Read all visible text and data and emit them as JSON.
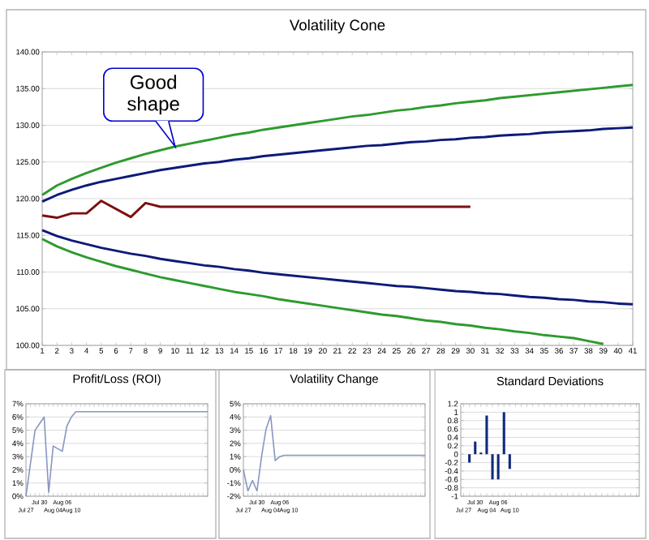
{
  "chart_data": [
    {
      "type": "line",
      "title": "Volatility Cone",
      "categories": [
        "1",
        "2",
        "3",
        "4",
        "5",
        "6",
        "7",
        "8",
        "9",
        "10",
        "11",
        "12",
        "13",
        "14",
        "15",
        "16",
        "17",
        "18",
        "19",
        "20",
        "21",
        "22",
        "23",
        "24",
        "25",
        "26",
        "27",
        "28",
        "29",
        "30",
        "31",
        "32",
        "33",
        "34",
        "35",
        "36",
        "37",
        "38",
        "39",
        "40",
        "41"
      ],
      "series": [
        {
          "color": "#2e9a2e",
          "values": [
            120.5,
            121.8,
            122.7,
            123.5,
            124.2,
            124.9,
            125.5,
            126.1,
            126.6,
            127.1,
            127.5,
            127.9,
            128.3,
            128.7,
            129.0,
            129.4,
            129.7,
            130.0,
            130.3,
            130.6,
            130.9,
            131.2,
            131.4,
            131.7,
            132.0,
            132.2,
            132.5,
            132.7,
            133.0,
            133.2,
            133.4,
            133.7,
            133.9,
            134.1,
            134.3,
            134.5,
            134.7,
            134.9,
            135.1,
            135.3,
            135.5
          ]
        },
        {
          "color": "#0c1a78",
          "values": [
            119.6,
            120.5,
            121.2,
            121.8,
            122.3,
            122.7,
            123.1,
            123.5,
            123.9,
            124.2,
            124.5,
            124.8,
            125.0,
            125.3,
            125.5,
            125.8,
            126.0,
            126.2,
            126.4,
            126.6,
            126.8,
            127.0,
            127.2,
            127.3,
            127.5,
            127.7,
            127.8,
            128.0,
            128.1,
            128.3,
            128.4,
            128.6,
            128.7,
            128.8,
            129.0,
            129.1,
            129.2,
            129.3,
            129.5,
            129.6,
            129.7
          ]
        },
        {
          "color": "#7b1010",
          "values": [
            117.7,
            117.4,
            118.0,
            118.0,
            119.7,
            118.6,
            117.5,
            119.4,
            118.9,
            118.9,
            118.9,
            118.9,
            118.9,
            118.9,
            118.9,
            118.9,
            118.9,
            118.9,
            118.9,
            118.9,
            118.9,
            118.9,
            118.9,
            118.9,
            118.9,
            118.9,
            118.9,
            118.9,
            118.9,
            118.9,
            null,
            null,
            null,
            null,
            null,
            null,
            null,
            null,
            null,
            null,
            null
          ]
        },
        {
          "color": "#0c1a78",
          "values": [
            115.7,
            114.9,
            114.3,
            113.8,
            113.3,
            112.9,
            112.5,
            112.2,
            111.8,
            111.5,
            111.2,
            110.9,
            110.7,
            110.4,
            110.2,
            109.9,
            109.7,
            109.5,
            109.3,
            109.1,
            108.9,
            108.7,
            108.5,
            108.3,
            108.1,
            108.0,
            107.8,
            107.6,
            107.4,
            107.3,
            107.1,
            107.0,
            106.8,
            106.6,
            106.5,
            106.3,
            106.2,
            106.0,
            105.9,
            105.7,
            105.6
          ]
        },
        {
          "color": "#2e9a2e",
          "values": [
            114.5,
            113.5,
            112.7,
            112.0,
            111.4,
            110.8,
            110.3,
            109.8,
            109.3,
            108.9,
            108.5,
            108.1,
            107.7,
            107.3,
            107.0,
            106.7,
            106.3,
            106.0,
            105.7,
            105.4,
            105.1,
            104.8,
            104.5,
            104.2,
            104.0,
            103.7,
            103.4,
            103.2,
            102.9,
            102.7,
            102.4,
            102.2,
            101.9,
            101.7,
            101.4,
            101.2,
            101.0,
            100.6,
            100.2,
            null,
            null
          ]
        }
      ],
      "ylim": [
        100,
        140
      ],
      "yticks": [
        {
          "value": 100,
          "label": "100.00"
        },
        {
          "value": 105,
          "label": "105.00"
        },
        {
          "value": 110,
          "label": "110.00"
        },
        {
          "value": 115,
          "label": "115.00"
        },
        {
          "value": 120,
          "label": "120.00"
        },
        {
          "value": 125,
          "label": "125.00"
        },
        {
          "value": 130,
          "label": "130.00"
        },
        {
          "value": 135,
          "label": "135.00"
        },
        {
          "value": 140,
          "label": "140.00"
        }
      ],
      "grid": "y",
      "annotations": [
        {
          "text": "Good shape",
          "x": "10",
          "y": 127.1
        }
      ]
    },
    {
      "type": "line",
      "title": "Profit/Loss (ROI)",
      "categories": [
        "Jul 27",
        null,
        null,
        "Jul 30",
        null,
        null,
        "Aug 04",
        null,
        "Aug 06",
        null,
        "Aug 10",
        null,
        null,
        null,
        null,
        null,
        null,
        null,
        null,
        null,
        null,
        null,
        null,
        null,
        null,
        null,
        null,
        null,
        null,
        null,
        null,
        null,
        null,
        null,
        null,
        null,
        null,
        null,
        null,
        null,
        null
      ],
      "series": [
        {
          "color": "#8896c0",
          "values": [
            0,
            2.5,
            5,
            5.5,
            6,
            0.3,
            3.8,
            3.6,
            3.4,
            5.3,
            6.0,
            6.4,
            6.4,
            6.4,
            6.4,
            6.4,
            6.4,
            6.4,
            6.4,
            6.4,
            6.4,
            6.4,
            6.4,
            6.4,
            6.4,
            6.4,
            6.4,
            6.4,
            6.4,
            6.4,
            6.4,
            6.4,
            6.4,
            6.4,
            6.4,
            6.4,
            6.4,
            6.4,
            6.4,
            6.4,
            6.4
          ]
        }
      ],
      "ylim": [
        0,
        7
      ],
      "yticks": [
        {
          "value": 0,
          "label": "0%"
        },
        {
          "value": 1,
          "label": "1%"
        },
        {
          "value": 2,
          "label": "2%"
        },
        {
          "value": 3,
          "label": "3%"
        },
        {
          "value": 4,
          "label": "4%"
        },
        {
          "value": 5,
          "label": "5%"
        },
        {
          "value": 6,
          "label": "6%"
        },
        {
          "value": 7,
          "label": "7%"
        }
      ],
      "grid": "y"
    },
    {
      "type": "line",
      "title": "Volatility Change",
      "categories": [
        "Jul 27",
        null,
        null,
        "Jul 30",
        null,
        null,
        "Aug 04",
        null,
        "Aug 06",
        null,
        "Aug 10",
        null,
        null,
        null,
        null,
        null,
        null,
        null,
        null,
        null,
        null,
        null,
        null,
        null,
        null,
        null,
        null,
        null,
        null,
        null,
        null,
        null,
        null,
        null,
        null,
        null,
        null,
        null,
        null,
        null,
        null
      ],
      "series": [
        {
          "color": "#8896c0",
          "values": [
            0,
            -1.6,
            -0.8,
            -1.6,
            1.0,
            3.1,
            4.1,
            0.7,
            1.0,
            1.1,
            1.1,
            1.1,
            1.1,
            1.1,
            1.1,
            1.1,
            1.1,
            1.1,
            1.1,
            1.1,
            1.1,
            1.1,
            1.1,
            1.1,
            1.1,
            1.1,
            1.1,
            1.1,
            1.1,
            1.1,
            1.1,
            1.1,
            1.1,
            1.1,
            1.1,
            1.1,
            1.1,
            1.1,
            1.1,
            1.1,
            1.1
          ]
        }
      ],
      "ylim": [
        -2,
        5
      ],
      "yticks": [
        {
          "value": -2,
          "label": "-2%"
        },
        {
          "value": -1,
          "label": "-1%"
        },
        {
          "value": 0,
          "label": "0%"
        },
        {
          "value": 1,
          "label": "1%"
        },
        {
          "value": 2,
          "label": "2%"
        },
        {
          "value": 3,
          "label": "3%"
        },
        {
          "value": 4,
          "label": "4%"
        },
        {
          "value": 5,
          "label": "5%"
        }
      ],
      "grid": "y"
    },
    {
      "type": "bar",
      "title": "Standard Deviations",
      "categories": [
        "Jul 27",
        null,
        "Jul 30",
        null,
        "Aug 04",
        null,
        "Aug 06",
        null,
        "Aug 10",
        null,
        null,
        null,
        null,
        null,
        null,
        null,
        null,
        null,
        null,
        null,
        null,
        null,
        null,
        null,
        null,
        null,
        null,
        null,
        null,
        null,
        null
      ],
      "series": [
        {
          "color": "#0f2a7a",
          "values": [
            null,
            -0.2,
            0.3,
            0.04,
            0.92,
            -0.6,
            -0.6,
            1.0,
            -0.35,
            null,
            null,
            null,
            null,
            null,
            null,
            null,
            null,
            null,
            null,
            null,
            null,
            null,
            null,
            null,
            null,
            null,
            null,
            null,
            null,
            null,
            null
          ]
        }
      ],
      "ylim": [
        -1,
        1.2
      ],
      "yticks": [
        -1,
        -0.8,
        -0.6,
        -0.4,
        -0.2,
        0,
        0.2,
        0.4,
        0.6,
        0.8,
        1,
        1.2
      ],
      "grid": "y"
    }
  ]
}
